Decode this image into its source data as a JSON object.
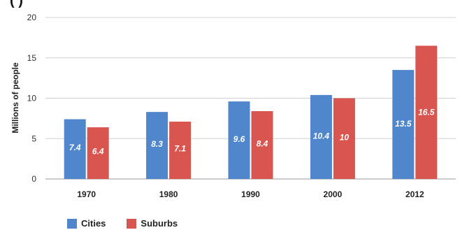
{
  "header": {
    "clipped_title": "(        )"
  },
  "chart_data": {
    "type": "bar",
    "categories": [
      "1970",
      "1980",
      "1990",
      "2000",
      "2012"
    ],
    "series": [
      {
        "name": "Cities",
        "values": [
          7.4,
          8.3,
          9.6,
          10.4,
          13.5
        ],
        "labels": [
          "7.4",
          "8.3",
          "9.6",
          "10.4",
          "13.5"
        ],
        "color": "#4f86cc"
      },
      {
        "name": "Suburbs",
        "values": [
          6.4,
          7.1,
          8.4,
          10,
          16.5
        ],
        "labels": [
          "6.4",
          "7.1",
          "8.4",
          "10",
          "16.5"
        ],
        "color": "#d95550"
      }
    ],
    "ylabel": "Millions of people",
    "ylim": [
      0,
      20
    ],
    "yticks": [
      "0",
      "5",
      "10",
      "15",
      "20"
    ],
    "grid": true,
    "legend": "bottom-left"
  }
}
